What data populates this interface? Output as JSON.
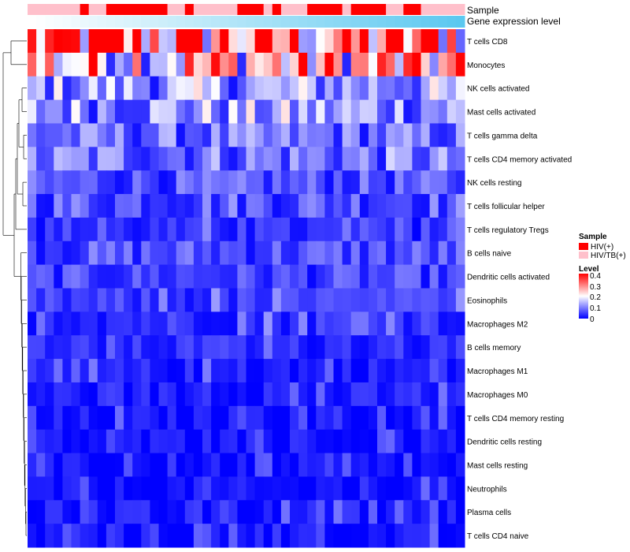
{
  "chart_data": {
    "type": "heatmap",
    "n_columns": 50,
    "annotations": {
      "sample_label": "Sample",
      "gene_label": "Gene expression level",
      "sample_groups": [
        "HIV(+)",
        "HIV/TB(+)"
      ],
      "sample_colors": {
        "HIV(+)": "#ff0000",
        "HIV/TB(+)": "#ffc0cb"
      },
      "sample_assignment": [
        1,
        1,
        1,
        1,
        1,
        1,
        0,
        1,
        1,
        0,
        0,
        0,
        0,
        0,
        0,
        0,
        1,
        1,
        0,
        1,
        1,
        1,
        1,
        1,
        0,
        0,
        0,
        1,
        0,
        1,
        1,
        1,
        0,
        0,
        0,
        0,
        1,
        0,
        0,
        0,
        0,
        1,
        1,
        0,
        0,
        1,
        1,
        1,
        1,
        1
      ],
      "gene_level_gradient": [
        "#ffffff",
        "#5bc8f0"
      ]
    },
    "rows": [
      {
        "name": "T cells CD8",
        "mean": 0.3
      },
      {
        "name": "Monocytes",
        "mean": 0.24
      },
      {
        "name": "NK cells activated",
        "mean": 0.12
      },
      {
        "name": "Mast cells activated",
        "mean": 0.12
      },
      {
        "name": "T cells gamma delta",
        "mean": 0.08
      },
      {
        "name": "T cells CD4 memory activated",
        "mean": 0.09
      },
      {
        "name": "NK cells resting",
        "mean": 0.06
      },
      {
        "name": "T cells follicular helper",
        "mean": 0.07
      },
      {
        "name": "T cells regulatory  Tregs",
        "mean": 0.03
      },
      {
        "name": "B cells naive",
        "mean": 0.06
      },
      {
        "name": "Dendritic cells activated",
        "mean": 0.05
      },
      {
        "name": "Eosinophils",
        "mean": 0.04
      },
      {
        "name": "Macrophages M2",
        "mean": 0.04
      },
      {
        "name": "B cells memory",
        "mean": 0.03
      },
      {
        "name": "Macrophages M1",
        "mean": 0.02
      },
      {
        "name": "Macrophages M0",
        "mean": 0.02
      },
      {
        "name": "T cells CD4 memory resting",
        "mean": 0.01
      },
      {
        "name": "Dendritic cells resting",
        "mean": 0.01
      },
      {
        "name": "Mast cells resting",
        "mean": 0.005
      },
      {
        "name": "Neutrophils",
        "mean": 0.005
      },
      {
        "name": "Plasma cells",
        "mean": 0.015
      },
      {
        "name": "T cells CD4 naive",
        "mean": 0.008
      }
    ],
    "legend": {
      "sample_title": "Sample",
      "level_title": "Level",
      "level_range": [
        0,
        0.4
      ],
      "level_ticks": [
        "0.4",
        "0.3",
        "0.2",
        "0.1",
        "0"
      ],
      "colors": {
        "low": "#0000ff",
        "mid": "#ffffff",
        "high": "#ff0000"
      }
    }
  }
}
